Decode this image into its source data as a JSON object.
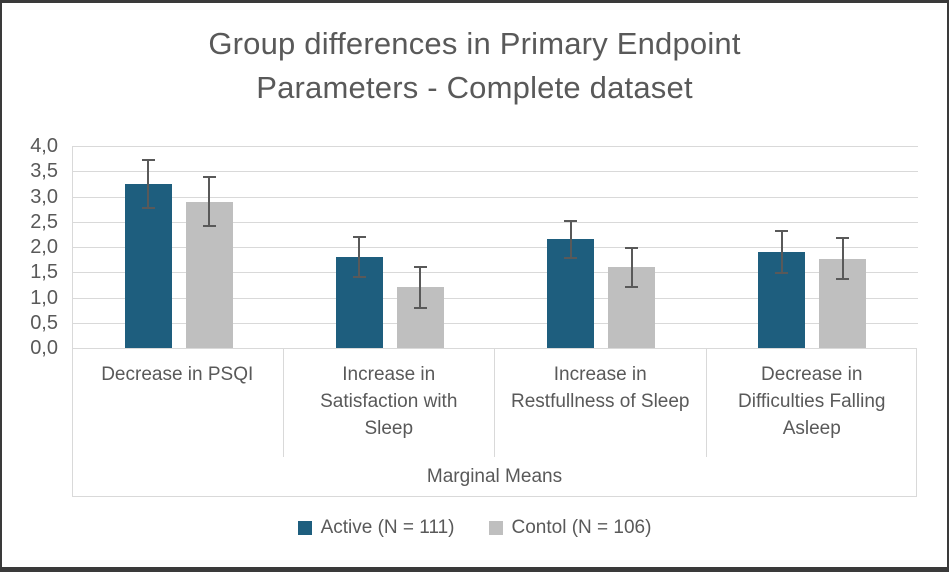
{
  "chart_data": {
    "type": "bar",
    "title": "Group differences in Primary Endpoint Parameters - Complete dataset",
    "title_lines": [
      "Group differences in Primary Endpoint",
      "Parameters - Complete dataset"
    ],
    "categories": [
      "Decrease in PSQI",
      "Increase in Satisfaction with Sleep",
      "Increase in Restfullness of Sleep",
      "Decrease in Difficulties Falling Asleep"
    ],
    "series": [
      {
        "name": "Active (N = 111)",
        "color": "#1E5E7E",
        "values": [
          3.25,
          1.8,
          2.15,
          1.9
        ],
        "errors": [
          0.48,
          0.39,
          0.37,
          0.41
        ]
      },
      {
        "name": "Contol (N = 106)",
        "color": "#BFBFBF",
        "values": [
          2.9,
          1.2,
          1.6,
          1.77
        ],
        "errors": [
          0.49,
          0.4,
          0.39,
          0.41
        ]
      }
    ],
    "xlabel": "Marginal Means",
    "ylim": [
      0,
      4
    ],
    "ytick_step": 0.5,
    "ytick_labels": [
      "0,0",
      "0,5",
      "1,0",
      "1,5",
      "2,0",
      "2,5",
      "3,0",
      "3,5",
      "4,0"
    ],
    "grid": true,
    "legend_position": "bottom",
    "error_bars": true
  },
  "style_colors": {
    "text": "#595959",
    "gridline": "#D9D9D9",
    "error_bar": "#595959",
    "frame_border": "#3A3A3A",
    "background": "#FFFFFF"
  }
}
